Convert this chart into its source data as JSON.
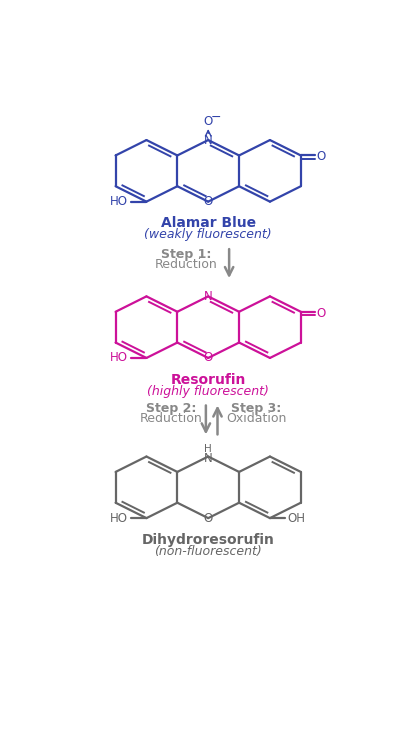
{
  "bg_color": "#ffffff",
  "alamar_blue_color": "#3344aa",
  "resorufin_color": "#cc1199",
  "dihydro_color": "#666666",
  "arrow_color": "#888888",
  "title1": "Alamar Blue",
  "subtitle1": "(weakly fluorescent)",
  "title2": "Resorufin",
  "subtitle2": "(highly fluorescent)",
  "title3": "Dihydroresorufin",
  "subtitle3": "(non-fluorescent)",
  "step1_text1": "Step 1:",
  "step1_text2": "Reduction",
  "step2_text1": "Step 2:",
  "step2_text2": "Reduction",
  "step3_text1": "Step 3:",
  "step3_text2": "Oxidation",
  "figsize": [
    4.07,
    7.5
  ],
  "dpi": 100
}
